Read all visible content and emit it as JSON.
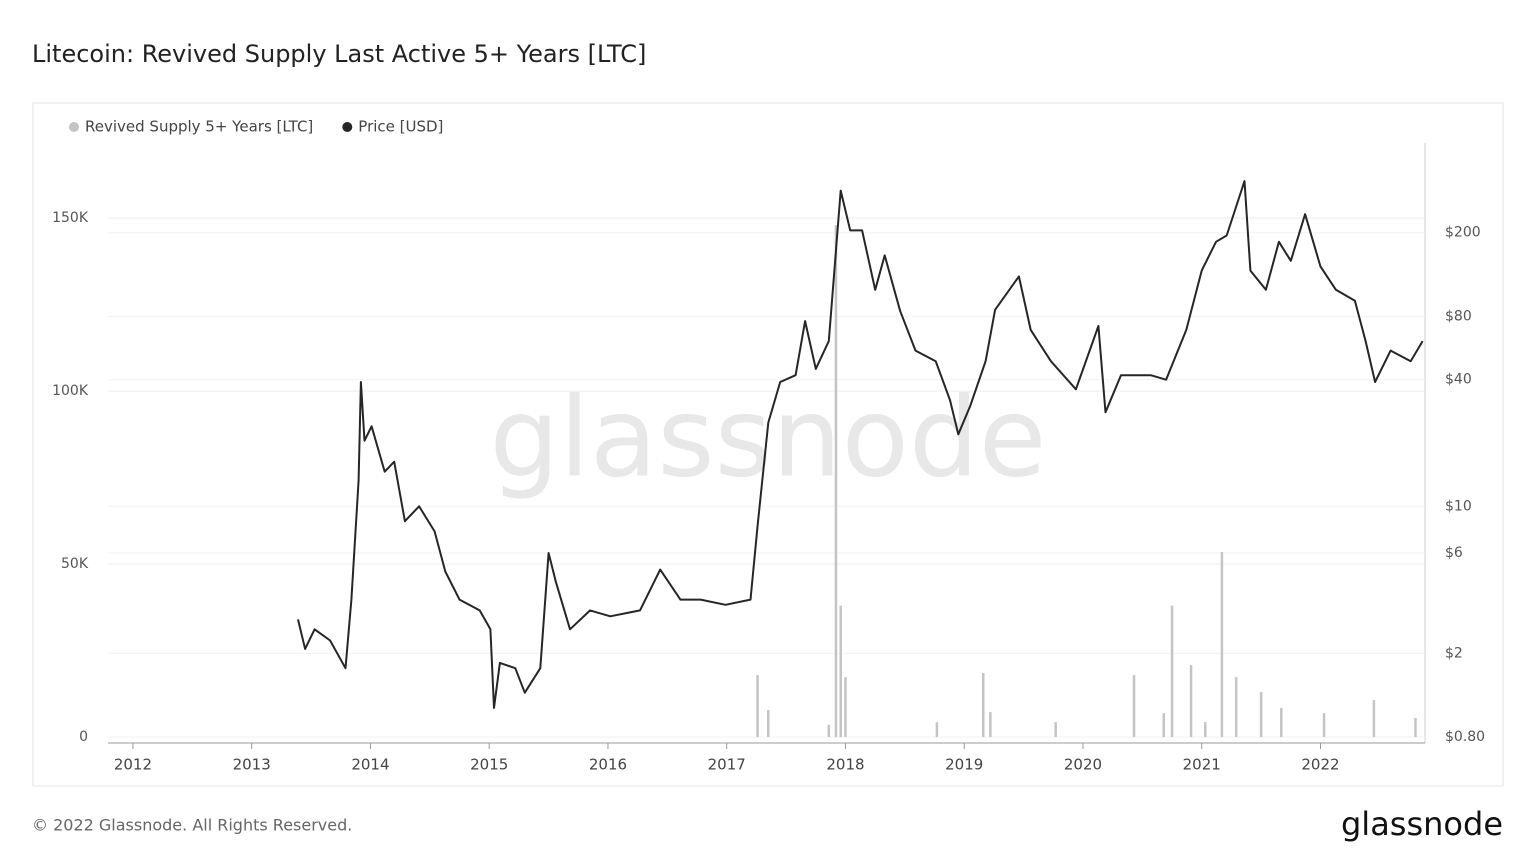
{
  "chart_data": {
    "type": "dual-axis",
    "title": "Litecoin: Revived Supply Last Active 5+ Years [LTC]",
    "watermark": "glassnode",
    "footer": "© 2022 Glassnode. All Rights Reserved.",
    "logo": "glassnode",
    "xlim": [
      2011.79,
      2022.88
    ],
    "xticks": [
      2012,
      2013,
      2014,
      2015,
      2016,
      2017,
      2018,
      2019,
      2020,
      2021,
      2022
    ],
    "ylim": [
      0,
      170000
    ],
    "yticks": [
      0,
      {
        "value": 50000,
        "label": "50K"
      },
      {
        "value": 100000,
        "label": "100K"
      },
      {
        "value": 150000,
        "label": "150K"
      }
    ],
    "y2lim": [
      0.8,
      500
    ],
    "y2log": true,
    "y2ticks": [
      {
        "value": 0.8,
        "label": "$0.80"
      },
      {
        "value": 2,
        "label": "$2"
      },
      {
        "value": 6,
        "label": "$6"
      },
      {
        "value": 10,
        "label": "$10"
      },
      {
        "value": 40,
        "label": "$40"
      },
      {
        "value": 80,
        "label": "$80"
      },
      {
        "value": 200,
        "label": "$200"
      }
    ],
    "grid": true,
    "series": [
      {
        "name": "Revived Supply 5+ Years [LTC]",
        "color": "#c4c4c4",
        "kind": "spike",
        "x": [
          2017.26,
          2017.35,
          2017.86,
          2017.92,
          2017.96,
          2018.0,
          2018.77,
          2019.16,
          2019.22,
          2019.77,
          2020.43,
          2020.68,
          2020.75,
          2020.91,
          2021.03,
          2021.17,
          2021.29,
          2021.5,
          2021.67,
          2022.03,
          2022.45,
          2022.8
        ],
        "values": [
          17900,
          7800,
          3500,
          148000,
          38000,
          17300,
          4300,
          18500,
          7200,
          4300,
          17900,
          6900,
          38000,
          20800,
          4300,
          53500,
          17300,
          13000,
          8400,
          6900,
          10700,
          5500
        ]
      },
      {
        "name": "Price [USD]",
        "color": "#262626",
        "kind": "line",
        "axis": "y2",
        "x": [
          2013.39,
          2013.45,
          2013.53,
          2013.66,
          2013.79,
          2013.84,
          2013.9,
          2013.92,
          2013.95,
          2014.01,
          2014.12,
          2014.2,
          2014.29,
          2014.41,
          2014.54,
          2014.63,
          2014.75,
          2014.92,
          2015.01,
          2015.04,
          2015.09,
          2015.22,
          2015.3,
          2015.43,
          2015.5,
          2015.56,
          2015.68,
          2015.85,
          2016.02,
          2016.27,
          2016.44,
          2016.61,
          2016.78,
          2016.99,
          2017.2,
          2017.26,
          2017.35,
          2017.45,
          2017.58,
          2017.66,
          2017.75,
          2017.86,
          2017.96,
          2018.04,
          2018.14,
          2018.25,
          2018.33,
          2018.46,
          2018.59,
          2018.76,
          2018.88,
          2018.95,
          2019.05,
          2019.18,
          2019.26,
          2019.46,
          2019.56,
          2019.73,
          2019.94,
          2020.13,
          2020.19,
          2020.32,
          2020.57,
          2020.7,
          2020.87,
          2021.0,
          2021.12,
          2021.21,
          2021.36,
          2021.41,
          2021.54,
          2021.65,
          2021.75,
          2021.87,
          2022.0,
          2022.13,
          2022.29,
          2022.38,
          2022.46,
          2022.59,
          2022.76,
          2022.86
        ],
        "values": [
          2.9,
          2.1,
          2.6,
          2.3,
          1.7,
          3.6,
          13.3,
          39,
          20.5,
          24,
          14.6,
          16.3,
          8.5,
          10,
          7.6,
          4.9,
          3.6,
          3.2,
          2.6,
          1.1,
          1.8,
          1.7,
          1.3,
          1.7,
          6.0,
          4.4,
          2.6,
          3.2,
          3.0,
          3.2,
          5.0,
          3.6,
          3.6,
          3.4,
          3.6,
          8.1,
          25,
          39,
          42,
          76,
          45,
          61,
          317,
          205,
          205,
          107,
          156,
          85,
          55,
          49,
          32,
          22,
          30,
          49,
          86,
          124,
          69,
          49,
          36,
          72,
          28,
          42,
          42,
          40,
          69,
          132,
          181,
          194,
          352,
          132,
          107,
          181,
          147,
          245,
          138,
          107,
          95,
          61,
          39,
          55,
          49,
          61
        ]
      }
    ]
  }
}
